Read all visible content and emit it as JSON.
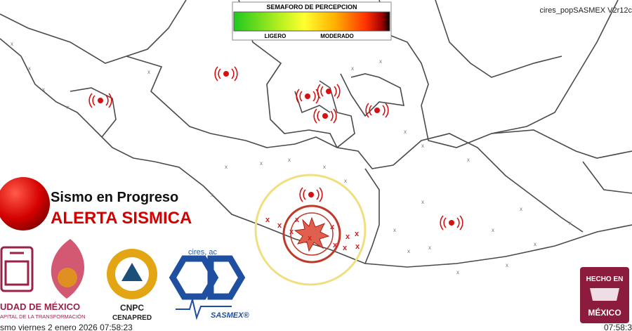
{
  "header": {
    "legend_title": "SEMAFORO DE PERCEPCION",
    "legend_low": "LIGERO",
    "legend_mid": "MODERADO",
    "app_version": "cires_popSASMEX V2r12c"
  },
  "alert": {
    "status": "Sismo en Progreso",
    "title": "ALERTA SISMICA"
  },
  "logos": {
    "cdmx_name": "UDAD DE MÉXICO",
    "cdmx_motto": "APITAL DE LA TRANSFORMACIÓN",
    "cnpc": "CNPC",
    "cenapred": "CENAPRED",
    "cires": "cires, ac",
    "sasmex": "SASMEX®",
    "hecho_en": "HECHO EN",
    "mexico": "MÉXICO"
  },
  "footer": {
    "event": "smo viernes 2 enero 2026 07:58:23",
    "clock": "07:58:3"
  }
}
